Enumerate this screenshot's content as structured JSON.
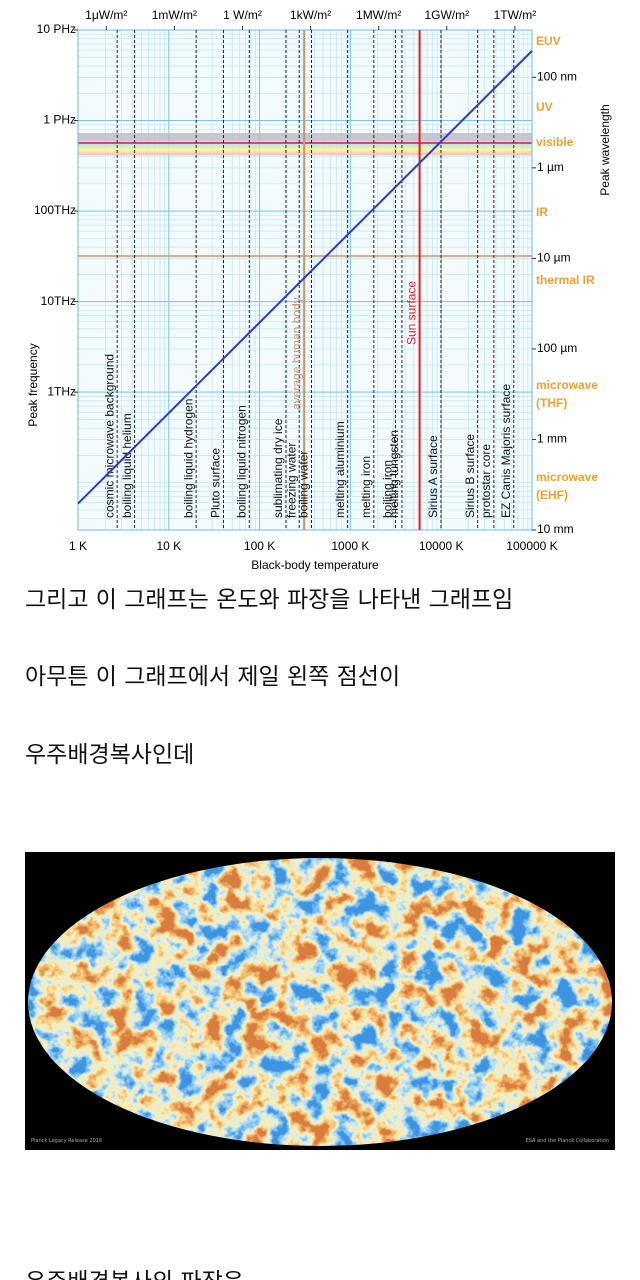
{
  "chart_data": {
    "type": "line",
    "xlabel": "Black-body temperature",
    "ylabel": "Peak frequency",
    "y2label": "Peak wavelength",
    "x": [
      1,
      100000
    ],
    "values": [
      58800000000,
      5880000000000000
    ],
    "color": "#2b3bc8",
    "xlim": [
      1,
      100000
    ],
    "xticks": [
      {
        "value": 1,
        "label": "1 K"
      },
      {
        "value": 10,
        "label": "10 K"
      },
      {
        "value": 100,
        "label": "100 K"
      },
      {
        "value": 1000,
        "label": "1000 K"
      },
      {
        "value": 10000,
        "label": "10000 K"
      },
      {
        "value": 100000,
        "label": "100000 K"
      }
    ],
    "ylim": [
      30000000000,
      10000000000000000
    ],
    "yticks": [
      {
        "value": 1000000000000,
        "label": "1THz"
      },
      {
        "value": 10000000000000,
        "label": "10THz"
      },
      {
        "value": 100000000000000,
        "label": "100THz"
      },
      {
        "value": 1000000000000000,
        "label": "1 PHz"
      },
      {
        "value": 10000000000000000,
        "label": "10 PHz"
      }
    ],
    "y2lim": [
      0.01,
      3e-08
    ],
    "y2ticks": [
      {
        "value": 1e-07,
        "label": "100 nm"
      },
      {
        "value": 1e-06,
        "label": "1 µm"
      },
      {
        "value": 1e-05,
        "label": "10 µm"
      },
      {
        "value": 0.0001,
        "label": "100 µm"
      },
      {
        "value": 0.001,
        "label": "1 mm"
      },
      {
        "value": 0.01,
        "label": "10 mm"
      }
    ],
    "x2lim": [
      5.67e-08,
      5670000000000
    ],
    "x2ticks": [
      {
        "value": 1e-06,
        "label": "1μW/m²"
      },
      {
        "value": 0.001,
        "label": "1mW/m²"
      },
      {
        "value": 1,
        "label": "1 W/m²"
      },
      {
        "value": 1000,
        "label": "1kW/m²"
      },
      {
        "value": 1000000,
        "label": "1MW/m²"
      },
      {
        "value": 1000000000,
        "label": "1GW/m²"
      },
      {
        "value": 1000000000000,
        "label": "1TW/m²"
      }
    ],
    "log": true,
    "grid": true,
    "bands": [
      "EUV",
      "UV",
      "visible",
      "IR",
      "thermal IR",
      "microwave (THF)",
      "microwave (EHF)"
    ],
    "markers": [
      {
        "label": "cosmic microwave background",
        "value": 2.7
      },
      {
        "label": "boiling liquid helium",
        "value": 4.2
      },
      {
        "label": "boiling liquid hydrogen",
        "value": 20
      },
      {
        "label": "Pluto surface",
        "value": 40
      },
      {
        "label": "boiling liquid nitrogen",
        "value": 77
      },
      {
        "label": "sublimating dry ice",
        "value": 195
      },
      {
        "label": "freezing water",
        "value": 273
      },
      {
        "label": "average human body",
        "value": 310,
        "color": "#c8956a"
      },
      {
        "label": "boiling water",
        "value": 373
      },
      {
        "label": "melting aluminium",
        "value": 933
      },
      {
        "label": "melting iron",
        "value": 1811
      },
      {
        "label": "boiling iron",
        "value": 3134
      },
      {
        "label": "melting tungsten",
        "value": 3695
      },
      {
        "label": "Sun surface",
        "value": 5778,
        "color": "#e02020"
      },
      {
        "label": "Sirius A surface",
        "value": 9940
      },
      {
        "label": "Sirius B surface",
        "value": 25200
      },
      {
        "label": "protostar core",
        "value": 38000
      },
      {
        "label": "EZ Canis Majoris surface",
        "value": 63000
      }
    ]
  },
  "post": {
    "paragraphs": [
      "그리고 이 그래프는 온도와 파장을 나타낸 그래프임",
      "아무튼 이 그래프에서 제일 왼쪽 점선이",
      "우주배경복사인데"
    ],
    "image_caption_left": "Planck Legacy Release 2018",
    "image_caption_right": "ESA and the Planck Collaboration",
    "next_line": "우주배경복사의 파장은"
  }
}
